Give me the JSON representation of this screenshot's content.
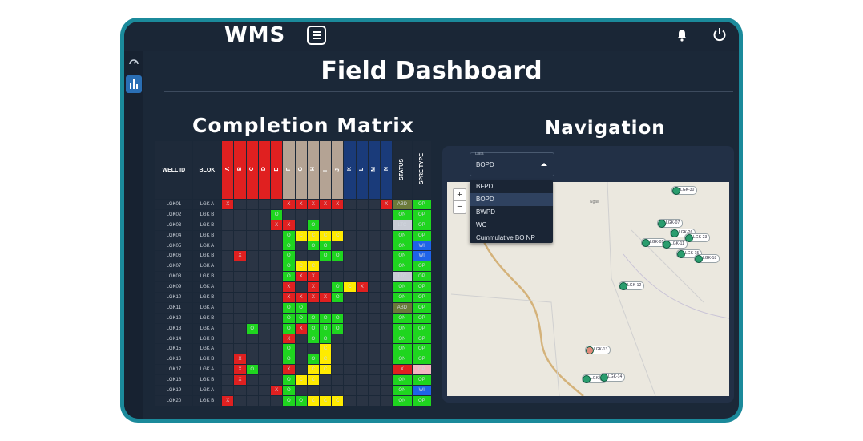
{
  "app": {
    "brand": "WMS"
  },
  "page": {
    "title": "Field Dashboard"
  },
  "matrix": {
    "title": "Completion Matrix",
    "headers": {
      "well_id": "WELL ID",
      "blok": "BLOK",
      "status": "STATUS",
      "type": "SPRE TYPE"
    },
    "letters": [
      "A",
      "B",
      "C",
      "D",
      "E",
      "F",
      "G",
      "H",
      "I",
      "J",
      "K",
      "L",
      "M",
      "N"
    ],
    "colors": {
      "red": "#e02020",
      "tan": "#b4a394",
      "navy": "#1a3b7a",
      "green": "#1fd51f",
      "yellow": "#ffeb00",
      "blue": "#1e63e9"
    },
    "rows": [
      {
        "id": "LGK01",
        "blok": "LGK A",
        "cells": [
          "X",
          "",
          "",
          "",
          "",
          "X",
          "X",
          "X",
          "X",
          "X",
          "",
          "",
          "",
          "X"
        ],
        "status": "ABD",
        "type": "OP"
      },
      {
        "id": "LGK02",
        "blok": "LGK B",
        "cells": [
          "",
          "",
          "",
          "",
          "O",
          "",
          "",
          "",
          "",
          "",
          "",
          "",
          "",
          ""
        ],
        "status": "ON",
        "type": "OP"
      },
      {
        "id": "LGK03",
        "blok": "LGK B",
        "cells": [
          "",
          "",
          "",
          "",
          "X",
          "X",
          "",
          "O",
          "",
          "",
          "",
          "",
          "",
          ""
        ],
        "status": "LTC",
        "type": "OP"
      },
      {
        "id": "LGK04",
        "blok": "LGK B",
        "cells": [
          "",
          "",
          "",
          "",
          "",
          "O",
          "C",
          "C",
          "C",
          "C",
          "",
          "",
          "",
          ""
        ],
        "status": "ON",
        "type": "OP"
      },
      {
        "id": "LGK05",
        "blok": "LGK A",
        "cells": [
          "",
          "",
          "",
          "",
          "",
          "O",
          "",
          "O",
          "O",
          "",
          "",
          "",
          "",
          ""
        ],
        "status": "ON",
        "type": "WI"
      },
      {
        "id": "LGK06",
        "blok": "LGK B",
        "cells": [
          "",
          "X",
          "",
          "",
          "",
          "O",
          "",
          "",
          "O",
          "O",
          "",
          "",
          "",
          ""
        ],
        "status": "ON",
        "type": "WI"
      },
      {
        "id": "LGK07",
        "blok": "LGK A",
        "cells": [
          "",
          "",
          "",
          "",
          "",
          "O",
          "C",
          "C",
          "",
          "",
          "",
          "",
          "",
          ""
        ],
        "status": "ON",
        "type": "OP"
      },
      {
        "id": "LGK08",
        "blok": "LGK B",
        "cells": [
          "",
          "",
          "",
          "",
          "",
          "O",
          "X",
          "X",
          "",
          "",
          "",
          "",
          "",
          ""
        ],
        "status": "LTC",
        "type": "OP"
      },
      {
        "id": "LGK09",
        "blok": "LGK A",
        "cells": [
          "",
          "",
          "",
          "",
          "",
          "X",
          "",
          "X",
          "",
          "O",
          "C",
          "X",
          "",
          ""
        ],
        "status": "ON",
        "type": "OP"
      },
      {
        "id": "LGK10",
        "blok": "LGK B",
        "cells": [
          "",
          "",
          "",
          "",
          "",
          "X",
          "X",
          "X",
          "X",
          "O",
          "",
          "",
          "",
          ""
        ],
        "status": "ON",
        "type": "OP"
      },
      {
        "id": "LGK11",
        "blok": "LGK A",
        "cells": [
          "",
          "",
          "",
          "",
          "",
          "O",
          "O",
          "",
          "",
          "",
          "",
          "",
          "",
          ""
        ],
        "status": "ABD",
        "type": "OP"
      },
      {
        "id": "LGK12",
        "blok": "LGK B",
        "cells": [
          "",
          "",
          "",
          "",
          "",
          "O",
          "O",
          "O",
          "O",
          "O",
          "",
          "",
          "",
          ""
        ],
        "status": "ON",
        "type": "OP"
      },
      {
        "id": "LGK13",
        "blok": "LGK A",
        "cells": [
          "",
          "",
          "O",
          "",
          "",
          "O",
          "X",
          "O",
          "O",
          "O",
          "",
          "",
          "",
          ""
        ],
        "status": "ON",
        "type": "OP"
      },
      {
        "id": "LGK14",
        "blok": "LGK B",
        "cells": [
          "",
          "",
          "",
          "",
          "",
          "X",
          "",
          "O",
          "O",
          "",
          "",
          "",
          "",
          ""
        ],
        "status": "ON",
        "type": "OP"
      },
      {
        "id": "LGK15",
        "blok": "LGK A",
        "cells": [
          "",
          "",
          "",
          "",
          "",
          "O",
          "",
          "",
          "C",
          "",
          "",
          "",
          "",
          ""
        ],
        "status": "ON",
        "type": "OP"
      },
      {
        "id": "LGK16",
        "blok": "LGK B",
        "cells": [
          "",
          "X",
          "",
          "",
          "",
          "O",
          "",
          "O",
          "C",
          "",
          "",
          "",
          "",
          ""
        ],
        "status": "ON",
        "type": "OP"
      },
      {
        "id": "LGK17",
        "blok": "LGK A",
        "cells": [
          "",
          "X",
          "O",
          "",
          "",
          "X",
          "",
          "C",
          "C",
          "",
          "",
          "",
          "",
          ""
        ],
        "status": "X",
        "type": "GP"
      },
      {
        "id": "LGK18",
        "blok": "LGK B",
        "cells": [
          "",
          "X",
          "",
          "",
          "",
          "O",
          "C",
          "C",
          "",
          "",
          "",
          "",
          "",
          ""
        ],
        "status": "ON",
        "type": "OP"
      },
      {
        "id": "LGK19",
        "blok": "LGK A",
        "cells": [
          "",
          "",
          "",
          "",
          "X",
          "O",
          "",
          "",
          "",
          "",
          "",
          "",
          "",
          ""
        ],
        "status": "ON",
        "type": "WI"
      },
      {
        "id": "LGK20",
        "blok": "LGK B",
        "cells": [
          "X",
          "",
          "",
          "",
          "",
          "O",
          "O",
          "C",
          "C",
          "C",
          "",
          "",
          "",
          ""
        ],
        "status": "ON",
        "type": "OP"
      }
    ]
  },
  "navigation": {
    "title": "Navigation",
    "select": {
      "label": "Data",
      "value": "BOPD",
      "options": [
        "BFPD",
        "BOPD",
        "BWPD",
        "WC",
        "Cummulative BO NP"
      ]
    },
    "zoom": {
      "plus": "+",
      "minus": "−"
    },
    "pins": [
      "LGK-30",
      "LGK-07",
      "LGK-26",
      "LGK-23",
      "LGK-05",
      "LGK-11",
      "LGK-15",
      "LGK-18",
      "LGK-12",
      "LGK-13",
      "LGK-22",
      "LGK-14"
    ],
    "place": "Ngali"
  }
}
